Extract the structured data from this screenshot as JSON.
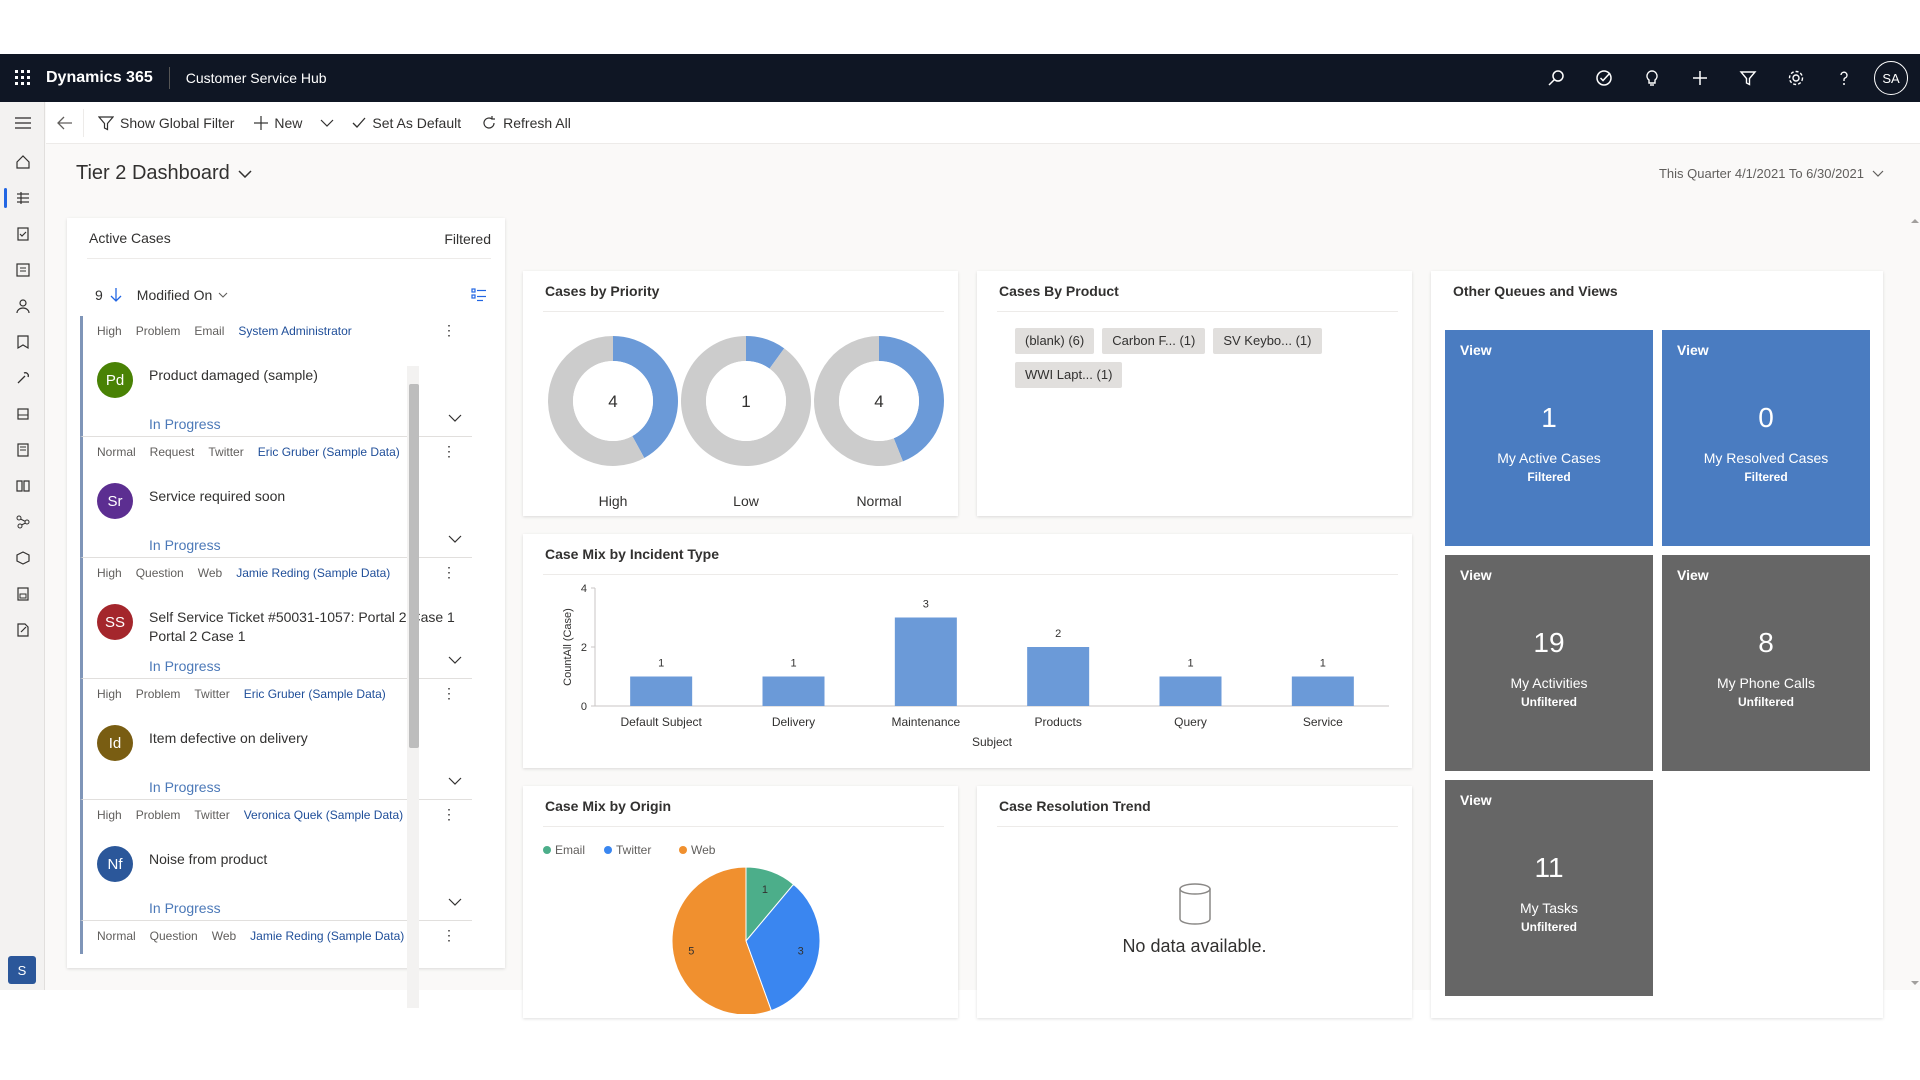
{
  "topbar": {
    "brand": "Dynamics 365",
    "app_name": "Customer Service Hub",
    "user_initials": "SA",
    "icons": [
      "search-icon",
      "task-icon",
      "lightbulb-icon",
      "plus-icon",
      "filter-icon",
      "gear-icon",
      "help-icon"
    ]
  },
  "leftnav": {
    "area_letter": "S",
    "icons": [
      "hamburger-icon",
      "home-icon",
      "dashboards-icon",
      "activities-icon",
      "accounts-icon",
      "contacts-icon",
      "social-profiles-icon",
      "cases-icon",
      "queues-icon",
      "knowledge-icon",
      "articles-icon",
      "entitlements-icon",
      "products-icon",
      "reports-icon",
      "other-icon"
    ]
  },
  "commandbar": {
    "show_global_filter": "Show Global Filter",
    "new": "New",
    "set_as_default": "Set As Default",
    "refresh_all": "Refresh All"
  },
  "dashboard": {
    "title": "Tier 2 Dashboard",
    "timeframe": "This Quarter 4/1/2021 To 6/30/2021"
  },
  "active_cases": {
    "title": "Active Cases",
    "filter_status": "Filtered",
    "count": "9",
    "sort_field": "Modified On",
    "items": [
      {
        "priority": "High",
        "type": "Problem",
        "origin": "Email",
        "owner": "System Administrator",
        "initials": "Pd",
        "avatar_color": "#498205",
        "title": "Product damaged (sample)",
        "subtitle": "",
        "status": "In Progress"
      },
      {
        "priority": "Normal",
        "type": "Request",
        "origin": "Twitter",
        "owner": "Eric Gruber (Sample Data)",
        "initials": "Sr",
        "avatar_color": "#5c2e91",
        "title": "Service required soon",
        "subtitle": "",
        "status": "In Progress"
      },
      {
        "priority": "High",
        "type": "Question",
        "origin": "Web",
        "owner": "Jamie Reding (Sample Data)",
        "initials": "SS",
        "avatar_color": "#a4262c",
        "title": "Self Service Ticket #50031-1057: Portal 2 Case 1",
        "subtitle": "Portal 2 Case 1",
        "status": "In Progress"
      },
      {
        "priority": "High",
        "type": "Problem",
        "origin": "Twitter",
        "owner": "Eric Gruber (Sample Data)",
        "initials": "Id",
        "avatar_color": "#795d12",
        "title": "Item defective on delivery",
        "subtitle": "",
        "status": "In Progress"
      },
      {
        "priority": "High",
        "type": "Problem",
        "origin": "Twitter",
        "owner": "Veronica Quek (Sample Data)",
        "initials": "Nf",
        "avatar_color": "#2b579a",
        "title": "Noise from product",
        "subtitle": "",
        "status": "In Progress"
      },
      {
        "priority": "Normal",
        "type": "Question",
        "origin": "Web",
        "owner": "Jamie Reding (Sample Data)",
        "initials": "",
        "avatar_color": "",
        "title": "",
        "subtitle": "",
        "status": ""
      }
    ]
  },
  "priority_panel": {
    "title": "Cases by Priority"
  },
  "product_panel": {
    "title": "Cases By Product",
    "tags": [
      "(blank) (6)",
      "Carbon F... (1)",
      "SV Keybo... (1)",
      "WWI Lapt... (1)"
    ]
  },
  "incident_panel": {
    "title": "Case Mix by Incident Type"
  },
  "origin_panel": {
    "title": "Case Mix by Origin"
  },
  "trend_panel": {
    "title": "Case Resolution Trend",
    "no_data": "No data available."
  },
  "queues": {
    "title": "Other Queues and Views",
    "tiles": [
      {
        "label": "View",
        "count": "1",
        "name": "My Active Cases",
        "filter": "Filtered",
        "color": "blue"
      },
      {
        "label": "View",
        "count": "0",
        "name": "My Resolved Cases",
        "filter": "Filtered",
        "color": "blue"
      },
      {
        "label": "View",
        "count": "19",
        "name": "My Activities",
        "filter": "Unfiltered",
        "color": "gray"
      },
      {
        "label": "View",
        "count": "8",
        "name": "My Phone Calls",
        "filter": "Unfiltered",
        "color": "gray"
      },
      {
        "label": "View",
        "count": "11",
        "name": "My Tasks",
        "filter": "Unfiltered",
        "color": "gray"
      }
    ]
  },
  "chart_data": [
    {
      "type": "pie",
      "title": "Cases by Priority",
      "categories": [
        "High",
        "Low",
        "Normal"
      ],
      "values": [
        4,
        1,
        4
      ],
      "donut_fraction_filled": [
        0.42,
        0.1,
        0.44
      ],
      "colors": {
        "filled": "#6b9ad8",
        "empty": "#cccccc"
      }
    },
    {
      "type": "bar",
      "title": "Case Mix by Incident Type",
      "categories": [
        "Default Subject",
        "Delivery",
        "Maintenance",
        "Products",
        "Query",
        "Service"
      ],
      "values": [
        1,
        1,
        3,
        2,
        1,
        1
      ],
      "xlabel": "Subject",
      "ylabel": "CountAll (Case)",
      "ylim": [
        0,
        4
      ],
      "yticks": [
        0,
        2,
        4
      ],
      "color": "#6b9ad8"
    },
    {
      "type": "pie",
      "title": "Case Mix by Origin",
      "legend": [
        "Email",
        "Twitter",
        "Web"
      ],
      "legend_position": "top-left",
      "values": [
        1,
        3,
        5
      ],
      "colors": [
        "#4cae8a",
        "#3a86f0",
        "#f0902f"
      ]
    }
  ]
}
